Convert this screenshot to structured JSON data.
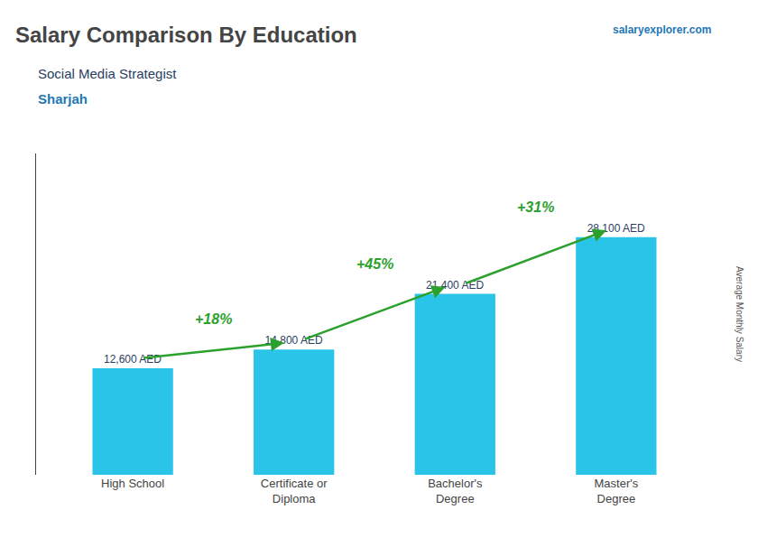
{
  "chart_data": {
    "type": "bar",
    "title": "Salary Comparison By Education",
    "subtitle": "Social Media Strategist",
    "city": "Sharjah",
    "categories": [
      "High School",
      "Certificate or\nDiploma",
      "Bachelor's\nDegree",
      "Master's\nDegree"
    ],
    "values": [
      12600,
      14800,
      21400,
      28100
    ],
    "value_labels": [
      "12,600 AED",
      "14,800 AED",
      "21,400 AED",
      "28,100 AED"
    ],
    "data_labels": true,
    "annotations": [
      "+18%",
      "+45%",
      "+31%"
    ],
    "watermark": "salaryexplorer.com",
    "side_label": "Average Monthly Salary",
    "color": "#29c4e8",
    "ylim": [
      0,
      38000
    ],
    "tick_labels": "x",
    "grid": false
  }
}
